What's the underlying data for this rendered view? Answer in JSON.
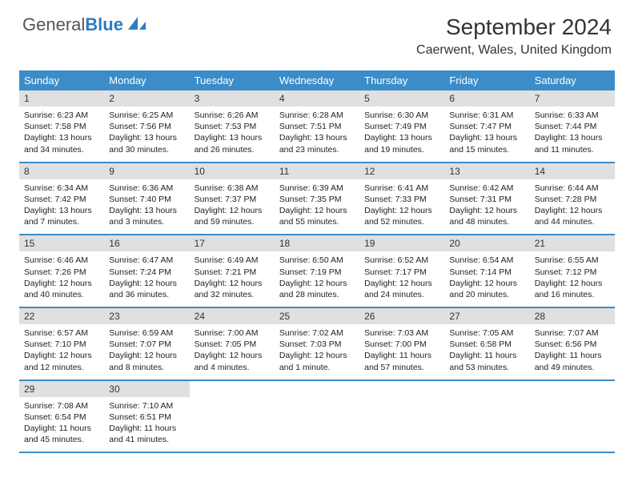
{
  "logo": {
    "text1": "General",
    "text2": "Blue"
  },
  "title": "September 2024",
  "location": "Caerwent, Wales, United Kingdom",
  "colors": {
    "header_bg": "#3b8cc9",
    "header_text": "#ffffff",
    "daynum_bg": "#e0e0e0",
    "row_border": "#3b8cc9",
    "logo_blue": "#2e7cc4",
    "logo_gray": "#555555"
  },
  "day_labels": [
    "Sunday",
    "Monday",
    "Tuesday",
    "Wednesday",
    "Thursday",
    "Friday",
    "Saturday"
  ],
  "weeks": [
    [
      {
        "n": "1",
        "sr": "6:23 AM",
        "ss": "7:58 PM",
        "dh": "13",
        "dm": "34"
      },
      {
        "n": "2",
        "sr": "6:25 AM",
        "ss": "7:56 PM",
        "dh": "13",
        "dm": "30"
      },
      {
        "n": "3",
        "sr": "6:26 AM",
        "ss": "7:53 PM",
        "dh": "13",
        "dm": "26"
      },
      {
        "n": "4",
        "sr": "6:28 AM",
        "ss": "7:51 PM",
        "dh": "13",
        "dm": "23"
      },
      {
        "n": "5",
        "sr": "6:30 AM",
        "ss": "7:49 PM",
        "dh": "13",
        "dm": "19"
      },
      {
        "n": "6",
        "sr": "6:31 AM",
        "ss": "7:47 PM",
        "dh": "13",
        "dm": "15"
      },
      {
        "n": "7",
        "sr": "6:33 AM",
        "ss": "7:44 PM",
        "dh": "13",
        "dm": "11"
      }
    ],
    [
      {
        "n": "8",
        "sr": "6:34 AM",
        "ss": "7:42 PM",
        "dh": "13",
        "dm": "7"
      },
      {
        "n": "9",
        "sr": "6:36 AM",
        "ss": "7:40 PM",
        "dh": "13",
        "dm": "3"
      },
      {
        "n": "10",
        "sr": "6:38 AM",
        "ss": "7:37 PM",
        "dh": "12",
        "dm": "59"
      },
      {
        "n": "11",
        "sr": "6:39 AM",
        "ss": "7:35 PM",
        "dh": "12",
        "dm": "55"
      },
      {
        "n": "12",
        "sr": "6:41 AM",
        "ss": "7:33 PM",
        "dh": "12",
        "dm": "52"
      },
      {
        "n": "13",
        "sr": "6:42 AM",
        "ss": "7:31 PM",
        "dh": "12",
        "dm": "48"
      },
      {
        "n": "14",
        "sr": "6:44 AM",
        "ss": "7:28 PM",
        "dh": "12",
        "dm": "44"
      }
    ],
    [
      {
        "n": "15",
        "sr": "6:46 AM",
        "ss": "7:26 PM",
        "dh": "12",
        "dm": "40"
      },
      {
        "n": "16",
        "sr": "6:47 AM",
        "ss": "7:24 PM",
        "dh": "12",
        "dm": "36"
      },
      {
        "n": "17",
        "sr": "6:49 AM",
        "ss": "7:21 PM",
        "dh": "12",
        "dm": "32"
      },
      {
        "n": "18",
        "sr": "6:50 AM",
        "ss": "7:19 PM",
        "dh": "12",
        "dm": "28"
      },
      {
        "n": "19",
        "sr": "6:52 AM",
        "ss": "7:17 PM",
        "dh": "12",
        "dm": "24"
      },
      {
        "n": "20",
        "sr": "6:54 AM",
        "ss": "7:14 PM",
        "dh": "12",
        "dm": "20"
      },
      {
        "n": "21",
        "sr": "6:55 AM",
        "ss": "7:12 PM",
        "dh": "12",
        "dm": "16"
      }
    ],
    [
      {
        "n": "22",
        "sr": "6:57 AM",
        "ss": "7:10 PM",
        "dh": "12",
        "dm": "12"
      },
      {
        "n": "23",
        "sr": "6:59 AM",
        "ss": "7:07 PM",
        "dh": "12",
        "dm": "8"
      },
      {
        "n": "24",
        "sr": "7:00 AM",
        "ss": "7:05 PM",
        "dh": "12",
        "dm": "4"
      },
      {
        "n": "25",
        "sr": "7:02 AM",
        "ss": "7:03 PM",
        "dh": "12",
        "dm": "1",
        "minute_word": "minute"
      },
      {
        "n": "26",
        "sr": "7:03 AM",
        "ss": "7:00 PM",
        "dh": "11",
        "dm": "57"
      },
      {
        "n": "27",
        "sr": "7:05 AM",
        "ss": "6:58 PM",
        "dh": "11",
        "dm": "53"
      },
      {
        "n": "28",
        "sr": "7:07 AM",
        "ss": "6:56 PM",
        "dh": "11",
        "dm": "49"
      }
    ],
    [
      {
        "n": "29",
        "sr": "7:08 AM",
        "ss": "6:54 PM",
        "dh": "11",
        "dm": "45"
      },
      {
        "n": "30",
        "sr": "7:10 AM",
        "ss": "6:51 PM",
        "dh": "11",
        "dm": "41"
      },
      null,
      null,
      null,
      null,
      null
    ]
  ]
}
